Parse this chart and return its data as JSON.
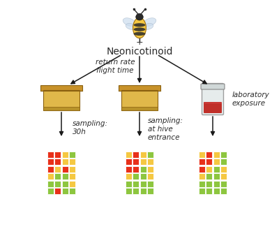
{
  "title_plus": "+",
  "title_neonic": "Neonicotinoid",
  "label_return": "return rate\nflight time",
  "label_lab": "laboratory\nexposure",
  "label_samp1": "sampling:\n30h",
  "label_samp2": "sampling:\nat hive\nentrance",
  "bg_color": "#ffffff",
  "text_color": "#2a2a2a",
  "heatmap1": [
    [
      "#e8301a",
      "#e8301a",
      "#f5c842",
      "#8dc63f"
    ],
    [
      "#e8301a",
      "#e8301a",
      "#f5c842",
      "#f5c842"
    ],
    [
      "#e8301a",
      "#f5c842",
      "#e8301a",
      "#f5c842"
    ],
    [
      "#f5c842",
      "#8dc63f",
      "#8dc63f",
      "#f5c842"
    ],
    [
      "#8dc63f",
      "#8dc63f",
      "#8dc63f",
      "#f5c842"
    ],
    [
      "#8dc63f",
      "#e8301a",
      "#8dc63f",
      "#8dc63f"
    ]
  ],
  "heatmap2": [
    [
      "#f5c842",
      "#e8301a",
      "#f5c842",
      "#8dc63f"
    ],
    [
      "#e8301a",
      "#e8301a",
      "#f5c842",
      "#f5c842"
    ],
    [
      "#e8301a",
      "#e8301a",
      "#8dc63f",
      "#f5c842"
    ],
    [
      "#f5c842",
      "#8dc63f",
      "#8dc63f",
      "#f5c842"
    ],
    [
      "#8dc63f",
      "#8dc63f",
      "#8dc63f",
      "#8dc63f"
    ],
    [
      "#8dc63f",
      "#8dc63f",
      "#8dc63f",
      "#8dc63f"
    ]
  ],
  "heatmap3": [
    [
      "#f5c842",
      "#e8301a",
      "#f5c842",
      "#8dc63f"
    ],
    [
      "#e8301a",
      "#e8301a",
      "#f5c842",
      "#8dc63f"
    ],
    [
      "#e8301a",
      "#f5c842",
      "#8dc63f",
      "#f5c842"
    ],
    [
      "#f5c842",
      "#8dc63f",
      "#8dc63f",
      "#f5c842"
    ],
    [
      "#8dc63f",
      "#8dc63f",
      "#8dc63f",
      "#8dc63f"
    ],
    [
      "#8dc63f",
      "#8dc63f",
      "#8dc63f",
      "#8dc63f"
    ]
  ],
  "arrow_color": "#1a1a1a",
  "font_size_neonic": 10,
  "font_size_plus": 9,
  "font_size_small": 7.5,
  "bee_body_color": "#f5c842",
  "bee_stripe_color": "#2a2a2a",
  "bee_wing_color": "#ccddee"
}
